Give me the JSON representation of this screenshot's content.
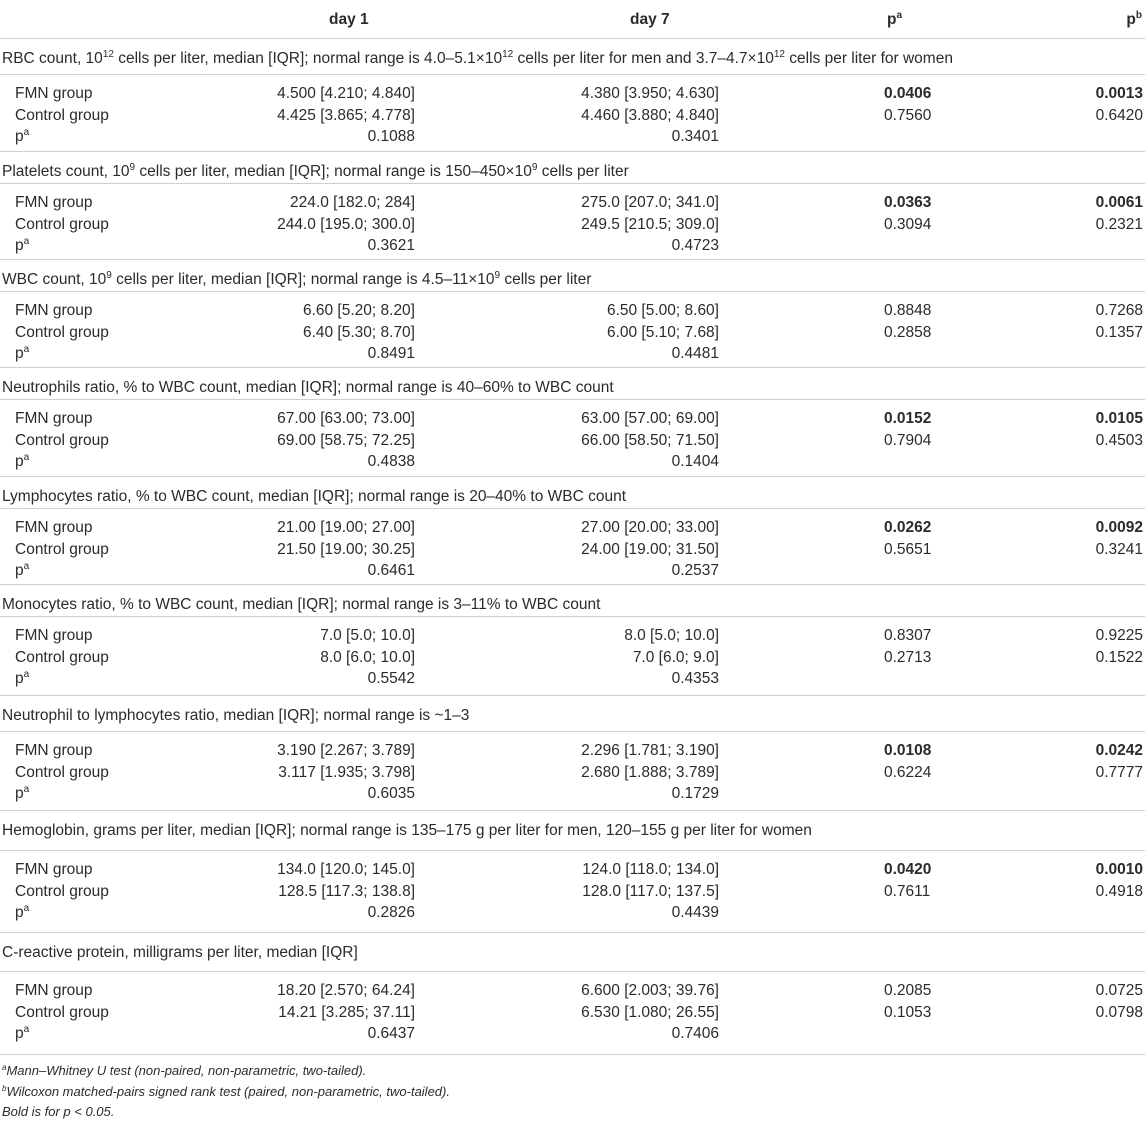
{
  "header": {
    "day1": "day 1",
    "day7": "day 7",
    "pa": "p",
    "pa_sup": "a",
    "pb": "p",
    "pb_sup": "b"
  },
  "sections": [
    {
      "title_parts": [
        {
          "t": "RBC count, 10"
        },
        {
          "t": "12",
          "sup": true
        },
        {
          "t": " cells per liter, median [IQR]; normal range is 4.0–5.1×10"
        },
        {
          "t": "12",
          "sup": true
        },
        {
          "t": " cells per liter for men and 3.7–4.7×10"
        },
        {
          "t": "12",
          "sup": true
        },
        {
          "t": " cells per liter for women"
        }
      ],
      "fmn": {
        "label": "FMN group",
        "day1": "4.500 [4.210; 4.840]",
        "day7": "4.380 [3.950; 4.630]",
        "pa": "0.0406",
        "pa_bold": true,
        "pb": "0.0013",
        "pb_bold": true
      },
      "control": {
        "label": "Control group",
        "day1": "4.425 [3.865; 4.778]",
        "day7": "4.460 [3.880; 4.840]",
        "pa": "0.7560",
        "pa_bold": false,
        "pb": "0.6420",
        "pb_bold": false
      },
      "p_row": {
        "label": "p",
        "label_sup": "a",
        "day1": "0.1088",
        "day7": "0.3401"
      },
      "title_height": 36,
      "group_height": 76
    },
    {
      "title_parts": [
        {
          "t": "Platelets count, 10"
        },
        {
          "t": "9",
          "sup": true
        },
        {
          "t": " cells per liter, median [IQR]; normal range is 150–450×10"
        },
        {
          "t": "9",
          "sup": true
        },
        {
          "t": " cells per liter"
        }
      ],
      "fmn": {
        "label": "FMN group",
        "day1": "224.0 [182.0; 284]",
        "day7": "275.0 [207.0; 341.0]",
        "pa": "0.0363",
        "pa_bold": true,
        "pb": "0.0061",
        "pb_bold": true
      },
      "control": {
        "label": "Control group",
        "day1": "244.0 [195.0; 300.0]",
        "day7": "249.5 [210.5; 309.0]",
        "pa": "0.3094",
        "pa_bold": false,
        "pb": "0.2321",
        "pb_bold": false
      },
      "p_row": {
        "label": "p",
        "label_sup": "a",
        "day1": "0.3621",
        "day7": "0.4723"
      },
      "title_height": 32,
      "group_height": 75
    },
    {
      "title_parts": [
        {
          "t": "WBC count, 10"
        },
        {
          "t": "9",
          "sup": true
        },
        {
          "t": " cells per liter, median [IQR]; normal range is 4.5–11×10"
        },
        {
          "t": "9",
          "sup": true
        },
        {
          "t": " cells per liter"
        }
      ],
      "fmn": {
        "label": "FMN group",
        "day1": "6.60 [5.20; 8.20]",
        "day7": "6.50 [5.00; 8.60]",
        "pa": "0.8848",
        "pa_bold": false,
        "pb": "0.7268",
        "pb_bold": false
      },
      "control": {
        "label": "Control group",
        "day1": "6.40 [5.30; 8.70]",
        "day7": "6.00 [5.10; 7.68]",
        "pa": "0.2858",
        "pa_bold": false,
        "pb": "0.1357",
        "pb_bold": false
      },
      "p_row": {
        "label": "p",
        "label_sup": "a",
        "day1": "0.8491",
        "day7": "0.4481"
      },
      "title_height": 32,
      "group_height": 75
    },
    {
      "title_parts": [
        {
          "t": "Neutrophils ratio, % to WBC count, median [IQR]; normal range is 40–60% to WBC count"
        }
      ],
      "fmn": {
        "label": "FMN group",
        "day1": "67.00 [63.00; 73.00]",
        "day7": "63.00 [57.00; 69.00]",
        "pa": "0.0152",
        "pa_bold": true,
        "pb": "0.0105",
        "pb_bold": true
      },
      "control": {
        "label": "Control group",
        "day1": "69.00 [58.75; 72.25]",
        "day7": "66.00 [58.50; 71.50]",
        "pa": "0.7904",
        "pa_bold": false,
        "pb": "0.4503",
        "pb_bold": false
      },
      "p_row": {
        "label": "p",
        "label_sup": "a",
        "day1": "0.4838",
        "day7": "0.1404"
      },
      "title_height": 32,
      "group_height": 76
    },
    {
      "title_parts": [
        {
          "t": "Lymphocytes ratio, % to WBC count, median [IQR]; normal range is 20–40% to WBC count"
        }
      ],
      "fmn": {
        "label": "FMN group",
        "day1": "21.00 [19.00; 27.00]",
        "day7": "27.00 [20.00; 33.00]",
        "pa": "0.0262",
        "pa_bold": true,
        "pb": "0.0092",
        "pb_bold": true
      },
      "control": {
        "label": "Control group",
        "day1": "21.50 [19.00; 30.25]",
        "day7": "24.00 [19.00; 31.50]",
        "pa": "0.5651",
        "pa_bold": false,
        "pb": "0.3241",
        "pb_bold": false
      },
      "p_row": {
        "label": "p",
        "label_sup": "a",
        "day1": "0.6461",
        "day7": "0.2537"
      },
      "title_height": 32,
      "group_height": 75
    },
    {
      "title_parts": [
        {
          "t": "Monocytes ratio, % to WBC count, median [IQR]; normal range is 3–11% to WBC count"
        }
      ],
      "fmn": {
        "label": "FMN group",
        "day1": "7.0 [5.0; 10.0]",
        "day7": "8.0 [5.0; 10.0]",
        "pa": "0.8307",
        "pa_bold": false,
        "pb": "0.9225",
        "pb_bold": false
      },
      "control": {
        "label": "Control group",
        "day1": "8.0 [6.0; 10.0]",
        "day7": "7.0 [6.0; 9.0]",
        "pa": "0.2713",
        "pa_bold": false,
        "pb": "0.1522",
        "pb_bold": false
      },
      "p_row": {
        "label": "p",
        "label_sup": "a",
        "day1": "0.5542",
        "day7": "0.4353"
      },
      "title_height": 32,
      "group_height": 78
    },
    {
      "title_parts": [
        {
          "t": "Neutrophil to lymphocytes ratio, median [IQR]; normal range is ~1–3"
        }
      ],
      "fmn": {
        "label": "FMN group",
        "day1": "3.190 [2.267; 3.789]",
        "day7": "2.296 [1.781; 3.190]",
        "pa": "0.0108",
        "pa_bold": true,
        "pb": "0.0242",
        "pb_bold": true
      },
      "control": {
        "label": "Control group",
        "day1": "3.117 [1.935; 3.798]",
        "day7": "2.680 [1.888; 3.789]",
        "pa": "0.6224",
        "pa_bold": false,
        "pb": "0.7777",
        "pb_bold": false
      },
      "p_row": {
        "label": "p",
        "label_sup": "a",
        "day1": "0.6035",
        "day7": "0.1729"
      },
      "title_height": 36,
      "group_height": 78
    },
    {
      "title_parts": [
        {
          "t": "Hemoglobin, grams per liter, median [IQR]; normal range is 135–175 g per liter for men, 120–155 g per liter for women"
        }
      ],
      "fmn": {
        "label": "FMN group",
        "day1": "134.0 [120.0; 145.0]",
        "day7": "124.0 [118.0; 134.0]",
        "pa": "0.0420",
        "pa_bold": true,
        "pb": "0.0010",
        "pb_bold": true
      },
      "control": {
        "label": "Control group",
        "day1": "128.5 [117.3; 138.8]",
        "day7": "128.0 [117.0; 137.5]",
        "pa": "0.7611",
        "pa_bold": false,
        "pb": "0.4918",
        "pb_bold": false
      },
      "p_row": {
        "label": "p",
        "label_sup": "a",
        "day1": "0.2826",
        "day7": "0.4439"
      },
      "title_height": 40,
      "group_height": 81
    },
    {
      "title_parts": [
        {
          "t": "C-reactive protein, milligrams per liter, median [IQR]"
        }
      ],
      "fmn": {
        "label": "FMN group",
        "day1": "18.20 [2.570; 64.24]",
        "day7": "6.600 [2.003; 39.76]",
        "pa": "0.2085",
        "pa_bold": false,
        "pb": "0.0725",
        "pb_bold": false
      },
      "control": {
        "label": "Control group",
        "day1": "14.21 [3.285; 37.11]",
        "day7": "6.530 [1.080; 26.55]",
        "pa": "0.1053",
        "pa_bold": false,
        "pb": "0.0798",
        "pb_bold": false
      },
      "p_row": {
        "label": "p",
        "label_sup": "a",
        "day1": "0.6437",
        "day7": "0.7406"
      },
      "title_height": 39,
      "group_height": 82
    }
  ],
  "footnotes": [
    {
      "sup": "a",
      "text": "Mann–Whitney U test (non-paired, non-parametric, two-tailed)."
    },
    {
      "sup": "b",
      "text": "Wilcoxon matched-pairs signed rank test (paired, non-parametric, two-tailed)."
    },
    {
      "sup": "",
      "text": "Bold is for p < 0.05."
    }
  ]
}
